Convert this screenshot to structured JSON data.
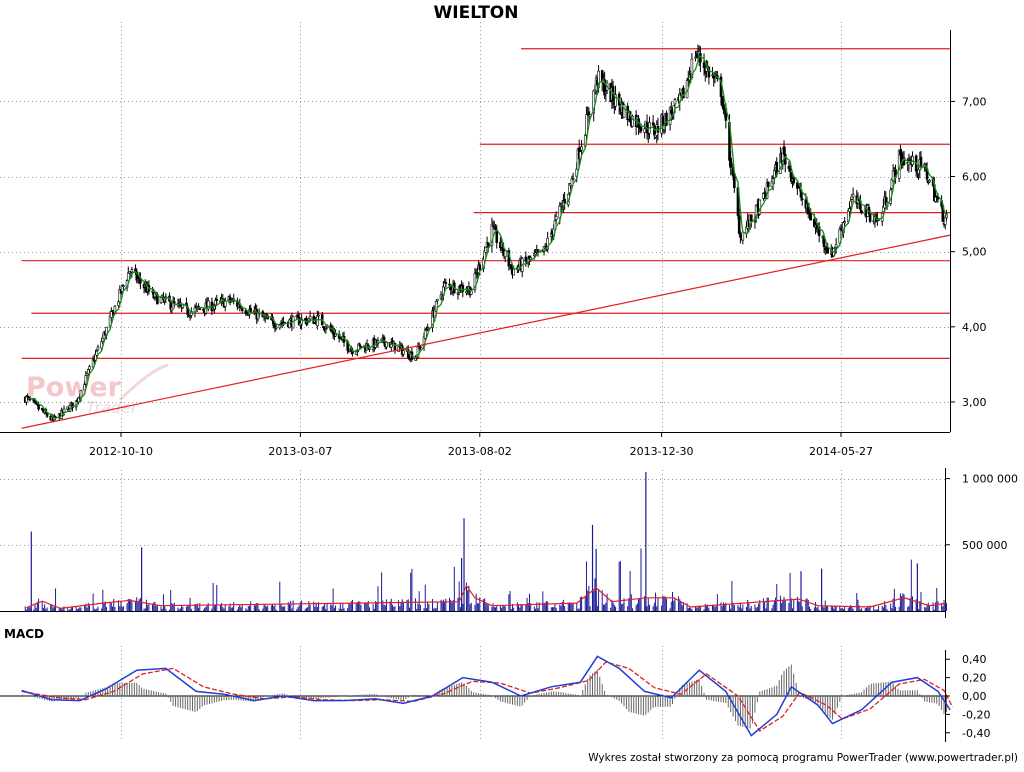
{
  "footer": "Wykres został stworzony za pomocą programu PowerTrader (www.powertrader.pl)",
  "watermark": {
    "line1": "Power",
    "line2": "Trader"
  },
  "colors": {
    "candle": "#000000",
    "trend_line": "#e41e1e",
    "sma_line": "#1a8a1a",
    "volume_bar": "#1b1b9a",
    "volume_avg": "#e41e1e",
    "macd_line": "#1f3fd6",
    "signal_line": "#e41e1e",
    "histogram": "#666666",
    "grid": "#999999"
  },
  "chart_data": [
    {
      "type": "candlestick",
      "title": "WIELTON",
      "x_tick_labels": [
        "2012-10-10",
        "2013-03-07",
        "2013-08-02",
        "2013-12-30",
        "2014-05-27"
      ],
      "y_tick_labels": [
        "3,00",
        "4,00",
        "5,00",
        "6,00",
        "7,00"
      ],
      "ylim": [
        2.6,
        7.95
      ],
      "grid": true,
      "price_path": [
        {
          "date": "2012-07-24",
          "close": 3.05
        },
        {
          "date": "2012-08-15",
          "close": 2.75
        },
        {
          "date": "2012-09-03",
          "close": 3.0
        },
        {
          "date": "2012-09-25",
          "close": 3.85
        },
        {
          "date": "2012-10-17",
          "close": 4.75
        },
        {
          "date": "2012-11-06",
          "close": 4.4
        },
        {
          "date": "2012-12-05",
          "close": 4.2
        },
        {
          "date": "2013-01-08",
          "close": 4.35
        },
        {
          "date": "2013-02-12",
          "close": 4.05
        },
        {
          "date": "2013-03-22",
          "close": 4.1
        },
        {
          "date": "2013-04-18",
          "close": 3.7
        },
        {
          "date": "2013-05-16",
          "close": 3.8
        },
        {
          "date": "2013-06-10",
          "close": 3.6
        },
        {
          "date": "2013-07-04",
          "close": 4.55
        },
        {
          "date": "2013-07-26",
          "close": 4.5
        },
        {
          "date": "2013-08-12",
          "close": 5.3
        },
        {
          "date": "2013-08-29",
          "close": 4.75
        },
        {
          "date": "2013-09-24",
          "close": 5.0
        },
        {
          "date": "2013-10-17",
          "close": 5.95
        },
        {
          "date": "2013-11-07",
          "close": 7.3
        },
        {
          "date": "2013-12-03",
          "close": 6.8
        },
        {
          "date": "2013-12-24",
          "close": 6.6
        },
        {
          "date": "2014-01-15",
          "close": 7.0
        },
        {
          "date": "2014-01-27",
          "close": 7.65
        },
        {
          "date": "2014-02-17",
          "close": 7.15
        },
        {
          "date": "2014-03-05",
          "close": 5.2
        },
        {
          "date": "2014-03-21",
          "close": 5.6
        },
        {
          "date": "2014-04-09",
          "close": 6.3
        },
        {
          "date": "2014-04-29",
          "close": 5.55
        },
        {
          "date": "2014-05-19",
          "close": 4.95
        },
        {
          "date": "2014-06-05",
          "close": 5.7
        },
        {
          "date": "2014-06-27",
          "close": 5.4
        },
        {
          "date": "2014-07-14",
          "close": 6.25
        },
        {
          "date": "2014-08-04",
          "close": 6.1
        },
        {
          "date": "2014-08-20",
          "close": 5.45
        }
      ],
      "horizontal_levels": [
        {
          "price": 7.7,
          "from": "2013-09-05",
          "to": "2014-09-01"
        },
        {
          "price": 6.43,
          "from": "2013-08-02",
          "to": "2014-09-01"
        },
        {
          "price": 5.52,
          "from": "2013-07-28",
          "to": "2014-09-01"
        },
        {
          "price": 4.88,
          "from": "2012-07-20",
          "to": "2014-09-01"
        },
        {
          "price": 4.18,
          "from": "2012-07-28",
          "to": "2014-09-01"
        },
        {
          "price": 3.58,
          "from": "2012-07-20",
          "to": "2014-09-01"
        }
      ],
      "trend_line": [
        {
          "date": "2012-07-20",
          "price": 2.65
        },
        {
          "date": "2014-08-25",
          "price": 5.22
        }
      ]
    },
    {
      "type": "bar",
      "name": "volume",
      "y_tick_labels": [
        "500 000",
        "1 000 000"
      ],
      "ylim": [
        0,
        1080000
      ],
      "spikes": [
        {
          "date": "2012-07-28",
          "volume": 600000
        },
        {
          "date": "2012-10-27",
          "volume": 480000
        },
        {
          "date": "2013-07-20",
          "volume": 700000
        },
        {
          "date": "2013-07-18",
          "volume": 400000
        },
        {
          "date": "2013-11-03",
          "volume": 650000
        },
        {
          "date": "2013-11-06",
          "volume": 470000
        },
        {
          "date": "2013-12-17",
          "volume": 1050000
        },
        {
          "date": "2014-07-29",
          "volume": 360000
        },
        {
          "date": "2014-05-11",
          "volume": 320000
        },
        {
          "date": "2014-04-24",
          "volume": 300000
        }
      ],
      "average_path": [
        {
          "date": "2012-07-24",
          "volume": 25000
        },
        {
          "date": "2012-08-06",
          "volume": 75000
        },
        {
          "date": "2012-08-21",
          "volume": 20000
        },
        {
          "date": "2012-09-25",
          "volume": 60000
        },
        {
          "date": "2012-10-17",
          "volume": 80000
        },
        {
          "date": "2012-11-12",
          "volume": 40000
        },
        {
          "date": "2013-07-16",
          "volume": 70000
        },
        {
          "date": "2013-07-22",
          "volume": 190000
        },
        {
          "date": "2013-07-29",
          "volume": 100000
        },
        {
          "date": "2013-08-12",
          "volume": 40000
        },
        {
          "date": "2013-10-21",
          "volume": 60000
        },
        {
          "date": "2013-11-06",
          "volume": 175000
        },
        {
          "date": "2013-11-19",
          "volume": 70000
        },
        {
          "date": "2013-12-17",
          "volume": 100000
        },
        {
          "date": "2014-01-09",
          "volume": 100000
        },
        {
          "date": "2014-01-23",
          "volume": 30000
        },
        {
          "date": "2014-04-22",
          "volume": 90000
        },
        {
          "date": "2014-05-08",
          "volume": 40000
        },
        {
          "date": "2014-06-20",
          "volume": 30000
        },
        {
          "date": "2014-07-18",
          "volume": 100000
        },
        {
          "date": "2014-08-08",
          "volume": 40000
        },
        {
          "date": "2014-08-22",
          "volume": 60000
        }
      ]
    },
    {
      "type": "line",
      "title": "MACD",
      "y_tick_labels": [
        "-0,40",
        "-0,20",
        "0,00",
        "0,20",
        "0,40"
      ],
      "ylim": [
        -0.5,
        0.5
      ],
      "macd_path": [
        {
          "date": "2012-07-20",
          "value": 0.06
        },
        {
          "date": "2012-08-14",
          "value": -0.04
        },
        {
          "date": "2012-09-06",
          "value": -0.05
        },
        {
          "date": "2012-09-28",
          "value": 0.08
        },
        {
          "date": "2012-10-23",
          "value": 0.28
        },
        {
          "date": "2012-11-16",
          "value": 0.3
        },
        {
          "date": "2012-12-11",
          "value": 0.05
        },
        {
          "date": "2013-01-03",
          "value": 0.02
        },
        {
          "date": "2013-01-28",
          "value": -0.05
        },
        {
          "date": "2013-02-21",
          "value": 0.0
        },
        {
          "date": "2013-03-18",
          "value": -0.05
        },
        {
          "date": "2013-04-12",
          "value": -0.05
        },
        {
          "date": "2013-05-08",
          "value": -0.03
        },
        {
          "date": "2013-05-31",
          "value": -0.08
        },
        {
          "date": "2013-06-24",
          "value": 0.0
        },
        {
          "date": "2013-07-19",
          "value": 0.2
        },
        {
          "date": "2013-08-12",
          "value": 0.15
        },
        {
          "date": "2013-09-05",
          "value": 0.0
        },
        {
          "date": "2013-09-30",
          "value": 0.1
        },
        {
          "date": "2013-10-24",
          "value": 0.15
        },
        {
          "date": "2013-11-07",
          "value": 0.43
        },
        {
          "date": "2013-11-25",
          "value": 0.3
        },
        {
          "date": "2013-12-16",
          "value": 0.05
        },
        {
          "date": "2014-01-07",
          "value": -0.02
        },
        {
          "date": "2014-01-30",
          "value": 0.28
        },
        {
          "date": "2014-02-21",
          "value": 0.05
        },
        {
          "date": "2014-03-14",
          "value": -0.43
        },
        {
          "date": "2014-04-04",
          "value": -0.2
        },
        {
          "date": "2014-04-16",
          "value": 0.1
        },
        {
          "date": "2014-05-08",
          "value": -0.1
        },
        {
          "date": "2014-05-20",
          "value": -0.3
        },
        {
          "date": "2014-06-13",
          "value": -0.15
        },
        {
          "date": "2014-07-08",
          "value": 0.15
        },
        {
          "date": "2014-07-29",
          "value": 0.2
        },
        {
          "date": "2014-08-15",
          "value": 0.05
        },
        {
          "date": "2014-08-25",
          "value": -0.15
        }
      ],
      "signal_path": [
        {
          "date": "2012-07-20",
          "value": 0.05
        },
        {
          "date": "2012-08-20",
          "value": -0.02
        },
        {
          "date": "2012-09-11",
          "value": -0.04
        },
        {
          "date": "2012-10-04",
          "value": 0.05
        },
        {
          "date": "2012-10-28",
          "value": 0.24
        },
        {
          "date": "2012-11-22",
          "value": 0.3
        },
        {
          "date": "2012-12-17",
          "value": 0.1
        },
        {
          "date": "2013-01-11",
          "value": 0.02
        },
        {
          "date": "2013-02-05",
          "value": -0.03
        },
        {
          "date": "2013-03-01",
          "value": -0.01
        },
        {
          "date": "2013-03-26",
          "value": -0.04
        },
        {
          "date": "2013-04-19",
          "value": -0.05
        },
        {
          "date": "2013-05-14",
          "value": -0.04
        },
        {
          "date": "2013-06-08",
          "value": -0.06
        },
        {
          "date": "2013-07-02",
          "value": 0.02
        },
        {
          "date": "2013-07-27",
          "value": 0.16
        },
        {
          "date": "2013-08-19",
          "value": 0.14
        },
        {
          "date": "2013-09-13",
          "value": 0.03
        },
        {
          "date": "2013-10-07",
          "value": 0.09
        },
        {
          "date": "2013-10-31",
          "value": 0.17
        },
        {
          "date": "2013-11-14",
          "value": 0.37
        },
        {
          "date": "2013-12-03",
          "value": 0.3
        },
        {
          "date": "2013-12-24",
          "value": 0.09
        },
        {
          "date": "2014-01-15",
          "value": 0.02
        },
        {
          "date": "2014-02-05",
          "value": 0.24
        },
        {
          "date": "2014-03-03",
          "value": 0.0
        },
        {
          "date": "2014-03-21",
          "value": -0.38
        },
        {
          "date": "2014-04-09",
          "value": -0.22
        },
        {
          "date": "2014-04-23",
          "value": 0.04
        },
        {
          "date": "2014-05-15",
          "value": -0.1
        },
        {
          "date": "2014-05-28",
          "value": -0.25
        },
        {
          "date": "2014-06-20",
          "value": -0.14
        },
        {
          "date": "2014-07-14",
          "value": 0.13
        },
        {
          "date": "2014-08-04",
          "value": 0.18
        },
        {
          "date": "2014-08-20",
          "value": 0.06
        },
        {
          "date": "2014-08-27",
          "value": -0.12
        }
      ]
    }
  ]
}
